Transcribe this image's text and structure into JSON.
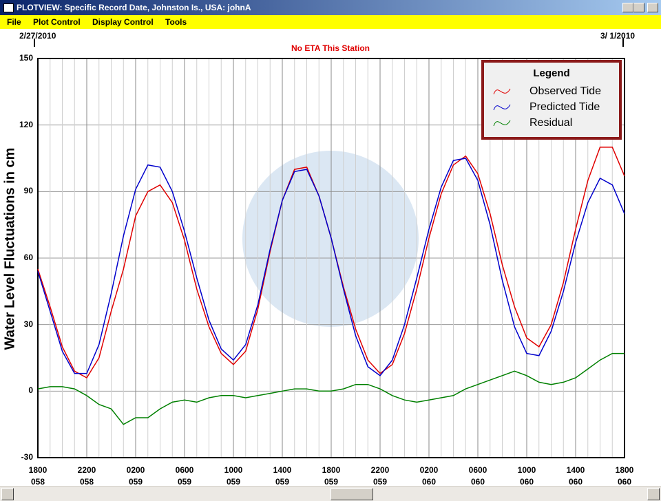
{
  "window": {
    "title": "PLOTVIEW: Specific Record Date, Johnston Is., USA: johnA"
  },
  "menu": [
    "File",
    "Plot Control",
    "Display Control",
    "Tools"
  ],
  "chart_data": {
    "type": "line",
    "title": "No ETA This Station",
    "start_date": "2/27/2010",
    "end_date": "3/ 1/2010",
    "y_label": "Water Level Fluctuations in cm",
    "legend_title": "Legend",
    "legend": "top-right",
    "grid": true,
    "ylim": [
      -30,
      150
    ],
    "yticks": [
      -30,
      0,
      30,
      60,
      90,
      120,
      150
    ],
    "categories": [
      "1800\n058",
      null,
      null,
      null,
      "2200\n058",
      null,
      null,
      null,
      "0200\n059",
      null,
      null,
      null,
      "0600\n059",
      null,
      null,
      null,
      "1000\n059",
      null,
      null,
      null,
      "1400\n059",
      null,
      null,
      null,
      "1800\n059",
      null,
      null,
      null,
      "2200\n059",
      null,
      null,
      null,
      "0200\n060",
      null,
      null,
      null,
      "0600\n060",
      null,
      null,
      null,
      "1000\n060",
      null,
      null,
      null,
      "1400\n060",
      null,
      null,
      null,
      "1800\n060"
    ],
    "series": [
      {
        "name": "Observed Tide",
        "color": "#e00000",
        "values": [
          55,
          38,
          20,
          9,
          6,
          15,
          36,
          55,
          79,
          90,
          93,
          85,
          68,
          46,
          29,
          17,
          12,
          18,
          37,
          63,
          86,
          100,
          101,
          88,
          69,
          47,
          28,
          14,
          8,
          12,
          26,
          46,
          69,
          89,
          102,
          106,
          98,
          80,
          57,
          38,
          24,
          20,
          30,
          49,
          73,
          95,
          110,
          110,
          97
        ]
      },
      {
        "name": "Predicted Tide",
        "color": "#0000cc",
        "values": [
          54,
          36,
          18,
          8,
          8,
          21,
          44,
          70,
          91,
          102,
          101,
          90,
          72,
          51,
          32,
          19,
          14,
          21,
          39,
          64,
          86,
          99,
          100,
          88,
          69,
          46,
          25,
          11,
          7,
          14,
          30,
          51,
          73,
          92,
          104,
          105,
          95,
          75,
          50,
          29,
          17,
          16,
          27,
          45,
          67,
          85,
          96,
          93,
          80
        ]
      },
      {
        "name": "Residual",
        "color": "#008000",
        "values": [
          1,
          2,
          2,
          1,
          -2,
          -6,
          -8,
          -15,
          -12,
          -12,
          -8,
          -5,
          -4,
          -5,
          -3,
          -2,
          -2,
          -3,
          -2,
          -1,
          0,
          1,
          1,
          0,
          0,
          1,
          3,
          3,
          1,
          -2,
          -4,
          -5,
          -4,
          -3,
          -2,
          1,
          3,
          5,
          7,
          9,
          7,
          4,
          3,
          4,
          6,
          10,
          14,
          17,
          17
        ]
      }
    ]
  }
}
